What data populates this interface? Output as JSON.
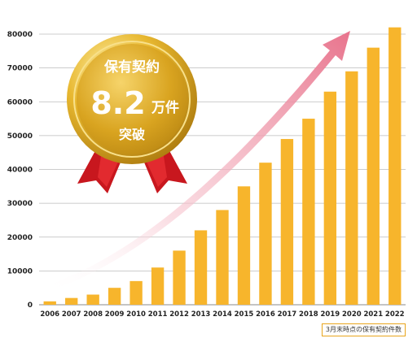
{
  "badge": {
    "line1": "保有契約",
    "number": "8.2",
    "unit": "万件",
    "line3": "突破"
  },
  "note": "3月末時点の保有契約件数",
  "colors": {
    "bar": "#F7B52C",
    "gridline": "#bbbbbb",
    "arrow_end": "#E8738C",
    "medal_gold": "#D9A420",
    "ribbon": "#C8171E"
  },
  "chart_data": {
    "type": "bar",
    "categories": [
      "2006",
      "2007",
      "2008",
      "2009",
      "2010",
      "2011",
      "2012",
      "2013",
      "2014",
      "2015",
      "2016",
      "2017",
      "2018",
      "2019",
      "2020",
      "2021",
      "2022"
    ],
    "values": [
      1000,
      2000,
      3000,
      5000,
      7000,
      11000,
      16000,
      22000,
      28000,
      35000,
      42000,
      49000,
      55000,
      63000,
      69000,
      76000,
      82000
    ],
    "yticks": [
      0,
      10000,
      20000,
      30000,
      40000,
      50000,
      60000,
      70000,
      80000
    ],
    "ylim": [
      0,
      80000
    ],
    "grid": true,
    "title": "",
    "xlabel": "",
    "ylabel": ""
  }
}
